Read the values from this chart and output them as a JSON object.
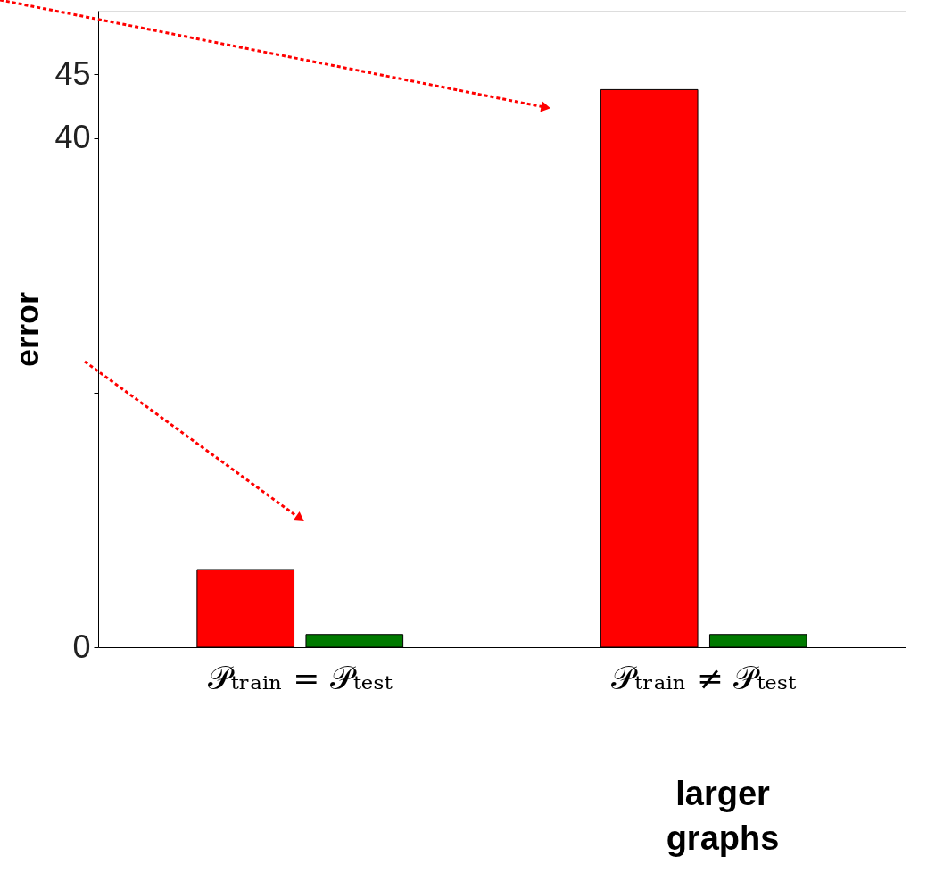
{
  "chart_data": {
    "type": "bar",
    "ylabel": "error",
    "categories": [
      "𝒫ₜᵣₐᵢₙ = 𝒫ₜₑₛₜ",
      "𝒫ₜᵣₐᵢₙ ≠ 𝒫ₜₑₛₜ"
    ],
    "series": [
      {
        "color": "#ff0000",
        "values": [
          6.1,
          43.8
        ]
      },
      {
        "color": "#007a00",
        "values": [
          1.0,
          1.0
        ]
      }
    ],
    "ylim": [
      0,
      50
    ],
    "yticks": [
      0,
      {
        "value": 20,
        "label": null
      },
      40,
      45
    ],
    "annotations": [
      "larger graphs"
    ]
  }
}
